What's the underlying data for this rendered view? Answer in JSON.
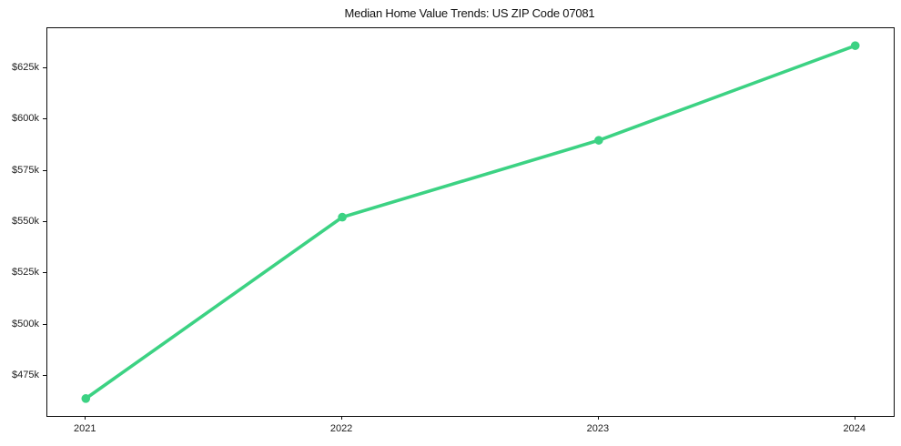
{
  "chart_data": {
    "type": "line",
    "title": "Median Home Value Trends: US ZIP Code 07081",
    "categories": [
      "2021",
      "2022",
      "2023",
      "2024"
    ],
    "x": [
      2021,
      2022,
      2023,
      2024
    ],
    "series": [
      {
        "name": "Median Home Value ($)",
        "values": [
          463900,
          552400,
          589900,
          636100
        ]
      }
    ],
    "xlabel": "",
    "ylabel": "",
    "xlim": [
      2020.85,
      2024.15
    ],
    "ylim": [
      455400,
      644600
    ],
    "yticks": [
      {
        "value": 475000,
        "label": "$475k"
      },
      {
        "value": 500000,
        "label": "$500k"
      },
      {
        "value": 525000,
        "label": "$525k"
      },
      {
        "value": 550000,
        "label": "$550k"
      },
      {
        "value": 575000,
        "label": "$575k"
      },
      {
        "value": 600000,
        "label": "$600k"
      },
      {
        "value": 625000,
        "label": "$625k"
      }
    ],
    "xticks": [
      {
        "value": 2021,
        "label": "2021"
      },
      {
        "value": 2022,
        "label": "2022"
      },
      {
        "value": 2023,
        "label": "2023"
      },
      {
        "value": 2024,
        "label": "2024"
      }
    ],
    "grid": false,
    "legend": "none",
    "marker": "circle",
    "line_color": "#3cd283",
    "marker_color": "#3cd283",
    "frame_color": "#0d0d0d",
    "text_color": "#1c1c1c",
    "background": "#ffffff"
  }
}
